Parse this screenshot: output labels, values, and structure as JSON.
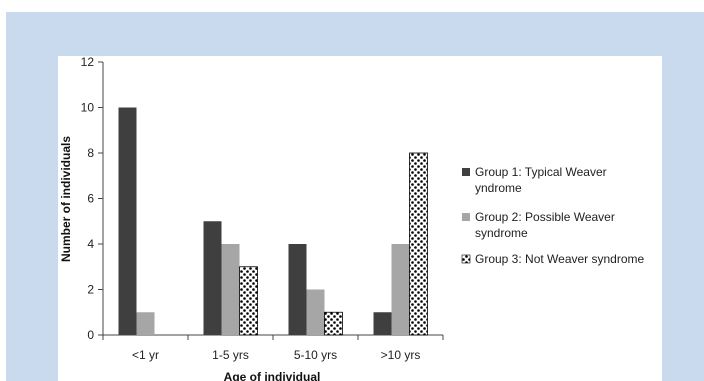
{
  "colors": {
    "frame_background": "#c9daef",
    "plot_background": "#ffffff",
    "series_group1": "#3f3f3f",
    "series_group2": "#a6a6a6",
    "series_group3_pattern": "black dots on white"
  },
  "chart_data": {
    "type": "bar",
    "title": "",
    "xlabel": "Age of individual",
    "ylabel": "Number of individuals",
    "categories": [
      "<1 yr",
      "1-5 yrs",
      "5-10 yrs",
      ">10 yrs"
    ],
    "ylim": [
      0,
      12
    ],
    "yticks": [
      0,
      2,
      4,
      6,
      8,
      10,
      12
    ],
    "grid": false,
    "legend_position": "right",
    "series": [
      {
        "name": "Group 1: Typical Weaver Syndrome",
        "values": [
          10,
          5,
          4,
          1
        ]
      },
      {
        "name": "Group 2: Possible Weaver syndrome",
        "values": [
          1,
          4,
          2,
          4
        ]
      },
      {
        "name": "Group 3: Not Weaver syndrome",
        "values": [
          0,
          3,
          1,
          8
        ]
      }
    ]
  }
}
